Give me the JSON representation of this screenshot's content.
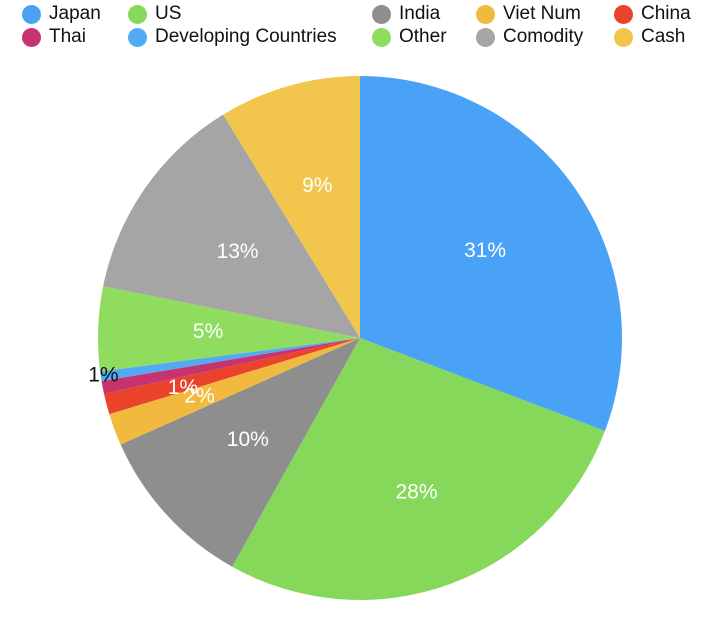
{
  "chart_data": {
    "type": "pie",
    "legend_position": "top",
    "slices": [
      {
        "name": "Japan",
        "value": 31.3,
        "label": "31%",
        "color": "#4aa2f7"
      },
      {
        "name": "US",
        "value": 27.8,
        "label": "28%",
        "color": "#86d85a"
      },
      {
        "name": "India",
        "value": 10.4,
        "label": "10%",
        "color": "#8e8e8e"
      },
      {
        "name": "Viet Num",
        "value": 2.0,
        "label": "2%",
        "color": "#f1ba3e"
      },
      {
        "name": "China",
        "value": 1.3,
        "label": "1%",
        "color": "#e9432b"
      },
      {
        "name": "Thai",
        "value": 0.8,
        "label": "",
        "color": "#c7336f"
      },
      {
        "name": "Developing Countries",
        "value": 0.6,
        "label": "1%",
        "color": "#52aaf5"
      },
      {
        "name": "Other",
        "value": 5.3,
        "label": "5%",
        "color": "#8fdc5f"
      },
      {
        "name": "Comodity",
        "value": 13.3,
        "label": "13%",
        "color": "#a5a5a5"
      },
      {
        "name": "Cash",
        "value": 8.9,
        "label": "9%",
        "color": "#f2c64c"
      }
    ]
  }
}
